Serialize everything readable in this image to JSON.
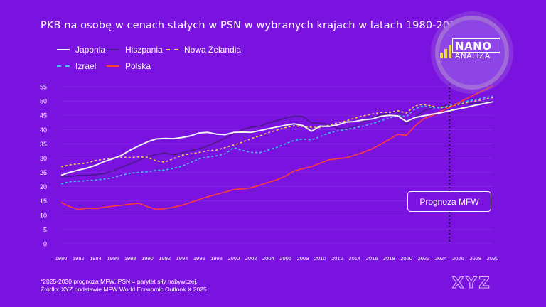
{
  "title": "PKB na osobę w cenach stałych w PSN w wybranych krajach w latach 1980-2030*",
  "legend": {
    "japonia": "Japonia",
    "hiszpania": "Hiszpania",
    "nowa_zelandia": "Nowa Zelandia",
    "izrael": "Izrael",
    "polska": "Polska"
  },
  "logo": {
    "line1": "NANO",
    "line2": "ANALIZA"
  },
  "forecast_label": "Prognoza MFW",
  "footnote1": "*2025-2030 prognoza MFW. PSN = parytet siły nabywczej.",
  "footnote2": "Źródło: XYZ podstawie MFW World Economic Outlook X 2025",
  "brand": "XYZ",
  "colors": {
    "background": "#7a12e0",
    "japonia": "#f2f2f2",
    "hiszpania": "#4b1a8a",
    "nowa_zelandia": "#e8d54a",
    "izrael": "#3cc8f0",
    "polska": "#ff3b3b"
  },
  "chart_data": {
    "type": "line",
    "x": [
      1980,
      1981,
      1982,
      1983,
      1984,
      1985,
      1986,
      1987,
      1988,
      1989,
      1990,
      1991,
      1992,
      1993,
      1994,
      1995,
      1996,
      1997,
      1998,
      1999,
      2000,
      2001,
      2002,
      2003,
      2004,
      2005,
      2006,
      2007,
      2008,
      2009,
      2010,
      2011,
      2012,
      2013,
      2014,
      2015,
      2016,
      2017,
      2018,
      2019,
      2020,
      2021,
      2022,
      2023,
      2024,
      2025,
      2026,
      2027,
      2028,
      2029,
      2030
    ],
    "xlim": [
      1980,
      2030
    ],
    "ylim": [
      0,
      55
    ],
    "y_ticks": [
      0,
      5,
      10,
      15,
      20,
      25,
      30,
      35,
      40,
      45,
      50,
      55
    ],
    "x_ticks": [
      1980,
      1982,
      1984,
      1986,
      1988,
      1990,
      1992,
      1994,
      1996,
      1998,
      2000,
      2002,
      2004,
      2006,
      2008,
      2010,
      2012,
      2014,
      2016,
      2018,
      2020,
      2022,
      2024,
      2026,
      2028,
      2030
    ],
    "forecast_start": 2025,
    "series": [
      {
        "name": "Japonia",
        "style": "solid",
        "values": [
          24,
          25,
          25.8,
          26.5,
          27.5,
          28.8,
          29.8,
          31,
          32.8,
          34.3,
          35.7,
          36.7,
          36.9,
          36.8,
          37.2,
          37.8,
          38.8,
          39,
          38.4,
          38.2,
          39,
          39.1,
          39,
          39.6,
          40.3,
          40.9,
          41.5,
          42,
          41.4,
          39.4,
          41.2,
          41.1,
          41.6,
          42.6,
          42.8,
          43.4,
          43.7,
          44.6,
          45,
          44.8,
          42.8,
          44.2,
          44.8,
          45.4,
          45.9,
          46.6,
          47.2,
          47.8,
          48.5,
          49.1,
          49.7
        ]
      },
      {
        "name": "Hiszpania",
        "style": "solid",
        "values": [
          23.5,
          23.6,
          23.9,
          24,
          24.2,
          24.6,
          25.5,
          26.8,
          28,
          29.2,
          30.5,
          31.3,
          31.8,
          31.2,
          31.8,
          32.6,
          33.3,
          34.3,
          35.6,
          37,
          38.6,
          40,
          40.8,
          41.2,
          42.3,
          43.1,
          44,
          44.7,
          44.6,
          42.4,
          42.2,
          41.8,
          40.5,
          40.2,
          41,
          42.8,
          44.1,
          45.1,
          45.8,
          46.5,
          41.7,
          44.4,
          46.6,
          47.5,
          48,
          48.5,
          48.8,
          49,
          49.3,
          49.6,
          49.9
        ]
      },
      {
        "name": "Nowa Zelandia",
        "style": "dashed",
        "values": [
          27,
          27.6,
          28,
          28.3,
          29.2,
          29.6,
          30,
          30.3,
          30.2,
          30.4,
          30.3,
          29.1,
          28.6,
          29.8,
          31,
          31.5,
          32,
          32.6,
          32.8,
          33.7,
          34.6,
          35.6,
          36.8,
          37.8,
          38.9,
          39.8,
          40.7,
          41.3,
          41.1,
          40.8,
          40.7,
          41.5,
          42.3,
          43,
          44,
          44.8,
          45.4,
          46,
          46,
          46.6,
          45.8,
          48.3,
          48.8,
          48.2,
          47.6,
          48,
          48.8,
          49.4,
          50,
          50.6,
          51.2
        ]
      },
      {
        "name": "Izrael",
        "style": "dashed",
        "values": [
          21,
          21.7,
          21.9,
          22.1,
          22.3,
          22.7,
          23.1,
          24,
          24.7,
          25,
          25.2,
          25.7,
          25.8,
          26.4,
          27.2,
          28.5,
          29.8,
          30.4,
          30.8,
          31.5,
          33.7,
          32.7,
          32,
          31.9,
          32.8,
          33.8,
          35,
          36.2,
          36.7,
          36.4,
          37.5,
          38.8,
          39.5,
          40,
          40.6,
          41.2,
          42,
          43,
          44,
          44.9,
          44.5,
          47.2,
          48.3,
          47.6,
          47.6,
          48.4,
          49.2,
          49.9,
          50.5,
          51.1,
          51.7
        ]
      },
      {
        "name": "Polska",
        "style": "solid",
        "values": [
          14.5,
          13,
          12,
          12.5,
          12.3,
          12.8,
          13.2,
          13.5,
          13.9,
          14.2,
          13,
          12.1,
          12.3,
          12.8,
          13.5,
          14.5,
          15.5,
          16.5,
          17.3,
          18.1,
          19,
          19.2,
          19.6,
          20.5,
          21.5,
          22.4,
          23.7,
          25.5,
          26.3,
          27,
          28.2,
          29.4,
          29.8,
          30.1,
          31,
          32,
          33.2,
          34.8,
          36.5,
          38.3,
          38,
          41.2,
          43.8,
          44.9,
          46.4,
          47.7,
          49.3,
          50.9,
          52.3,
          53.8,
          55.3
        ]
      }
    ]
  }
}
